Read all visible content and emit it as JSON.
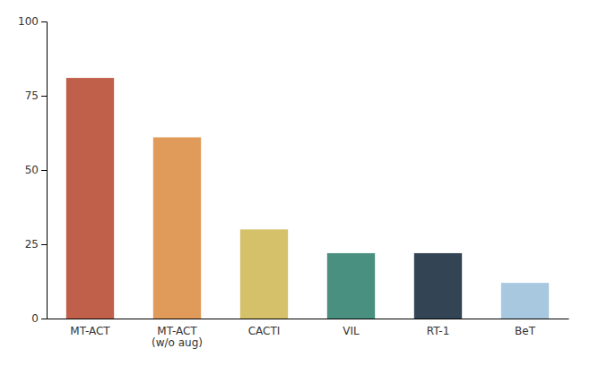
{
  "chart_data": {
    "type": "bar",
    "categories": [
      "MT-ACT",
      "MT-ACT\n(w/o aug)",
      "CACTI",
      "VIL",
      "RT-1",
      "BeT"
    ],
    "values": [
      81,
      61,
      30,
      22,
      22,
      12
    ],
    "colors": [
      "#c1604a",
      "#e09a5a",
      "#d4c16a",
      "#4a9080",
      "#334455",
      "#a8c8e0"
    ],
    "ylim": [
      0,
      100
    ],
    "yticks": [
      0,
      25,
      50,
      75,
      100
    ],
    "grid": false
  }
}
